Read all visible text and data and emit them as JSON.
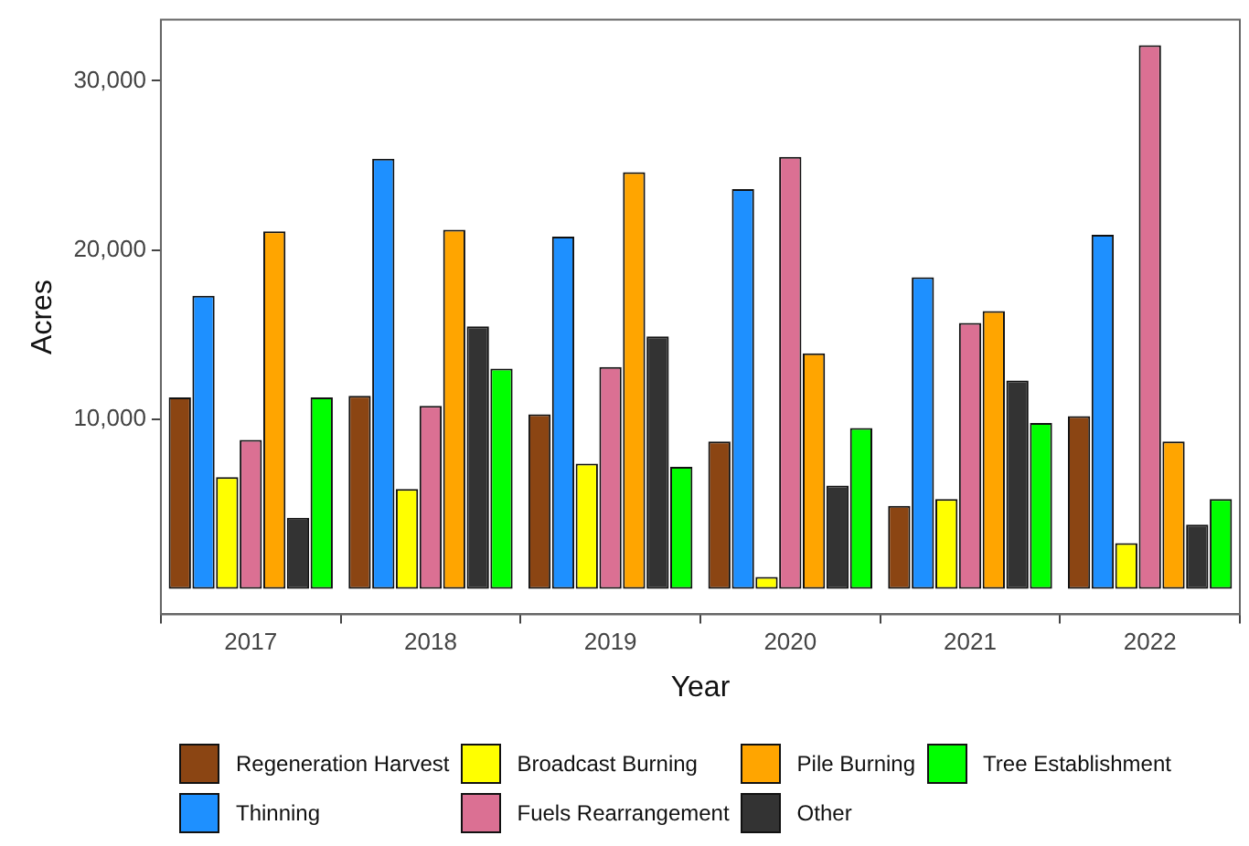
{
  "chart_data": {
    "type": "bar",
    "xlabel": "Year",
    "ylabel": "Acres",
    "categories": [
      "2017",
      "2018",
      "2019",
      "2020",
      "2021",
      "2022"
    ],
    "series": [
      {
        "name": "Regeneration Harvest",
        "color": "#8b4513",
        "values": [
          11300,
          11400,
          10300,
          8700,
          4900,
          10200
        ]
      },
      {
        "name": "Thinning",
        "color": "#1e90ff",
        "values": [
          17300,
          25400,
          20800,
          23600,
          18400,
          20900
        ]
      },
      {
        "name": "Broadcast Burning",
        "color": "#ffff00",
        "values": [
          6600,
          5900,
          7400,
          700,
          5300,
          2700
        ]
      },
      {
        "name": "Fuels Rearrangement",
        "color": "#db7093",
        "values": [
          8800,
          10800,
          13100,
          25500,
          15700,
          32100
        ]
      },
      {
        "name": "Pile Burning",
        "color": "#ffa500",
        "values": [
          21100,
          21200,
          24600,
          13900,
          16400,
          8700
        ]
      },
      {
        "name": "Other",
        "color": "#333333",
        "values": [
          4200,
          15500,
          14900,
          6100,
          12300,
          3800
        ]
      },
      {
        "name": "Tree Establishment",
        "color": "#00ff00",
        "values": [
          11300,
          13000,
          7200,
          9500,
          9800,
          5300
        ]
      }
    ],
    "ylim": [
      -1500,
      33600
    ],
    "yticks": [
      {
        "value": 10000,
        "label": "10,000"
      },
      {
        "value": 20000,
        "label": "20,000"
      },
      {
        "value": 30000,
        "label": "30,000"
      }
    ],
    "grid": false,
    "legend": "bottom"
  }
}
